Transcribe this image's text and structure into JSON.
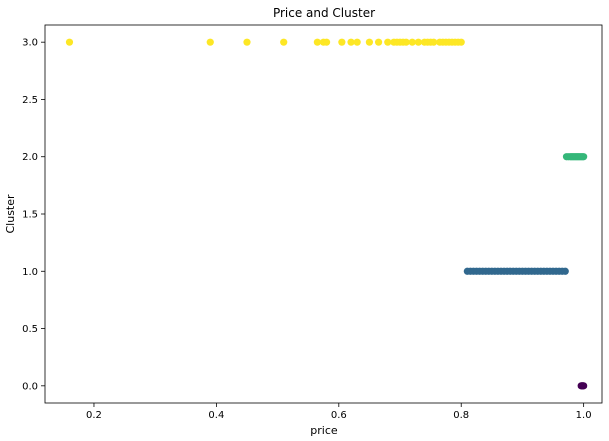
{
  "chart_data": {
    "type": "scatter",
    "title": "Price and Cluster",
    "xlabel": "price",
    "ylabel": "Cluster",
    "xlim": [
      0.12,
      1.03
    ],
    "ylim": [
      -0.15,
      3.15
    ],
    "xticks": [
      0.2,
      0.4,
      0.6,
      0.8,
      1.0
    ],
    "xtick_labels": [
      "0.2",
      "0.4",
      "0.6",
      "0.8",
      "1.0"
    ],
    "yticks": [
      0.0,
      0.5,
      1.0,
      1.5,
      2.0,
      2.5,
      3.0
    ],
    "ytick_labels": [
      "0.0",
      "0.5",
      "1.0",
      "1.5",
      "2.0",
      "2.5",
      "3.0"
    ],
    "grid": false,
    "legend": "none",
    "series": [
      {
        "cluster": 3,
        "color": "#fde725",
        "x": [
          0.16,
          0.39,
          0.45,
          0.51,
          0.565,
          0.575,
          0.58,
          0.605,
          0.62,
          0.63,
          0.65,
          0.665,
          0.68,
          0.69,
          0.695,
          0.7,
          0.705,
          0.71,
          0.72,
          0.73,
          0.74,
          0.745,
          0.75,
          0.755,
          0.765,
          0.77,
          0.775,
          0.78,
          0.785,
          0.79,
          0.795,
          0.8
        ],
        "y": [
          3,
          3,
          3,
          3,
          3,
          3,
          3,
          3,
          3,
          3,
          3,
          3,
          3,
          3,
          3,
          3,
          3,
          3,
          3,
          3,
          3,
          3,
          3,
          3,
          3,
          3,
          3,
          3,
          3,
          3,
          3,
          3
        ]
      },
      {
        "cluster": 2,
        "color": "#35b779",
        "x": [
          0.972,
          0.975,
          0.978,
          0.98,
          0.982,
          0.984,
          0.986,
          0.988,
          0.99,
          0.992,
          0.994,
          0.996,
          0.998,
          1.0
        ],
        "y": [
          2,
          2,
          2,
          2,
          2,
          2,
          2,
          2,
          2,
          2,
          2,
          2,
          2,
          2
        ]
      },
      {
        "cluster": 1,
        "color": "#31688e",
        "x": [
          0.81,
          0.815,
          0.82,
          0.825,
          0.83,
          0.835,
          0.84,
          0.845,
          0.85,
          0.855,
          0.86,
          0.865,
          0.87,
          0.875,
          0.88,
          0.885,
          0.89,
          0.895,
          0.9,
          0.905,
          0.91,
          0.915,
          0.92,
          0.925,
          0.93,
          0.935,
          0.94,
          0.945,
          0.95,
          0.955,
          0.96,
          0.965,
          0.97
        ],
        "y": [
          1,
          1,
          1,
          1,
          1,
          1,
          1,
          1,
          1,
          1,
          1,
          1,
          1,
          1,
          1,
          1,
          1,
          1,
          1,
          1,
          1,
          1,
          1,
          1,
          1,
          1,
          1,
          1,
          1,
          1,
          1,
          1,
          1
        ]
      },
      {
        "cluster": 0,
        "color": "#440154",
        "x": [
          0.996,
          0.997,
          0.998,
          0.999,
          1.0
        ],
        "y": [
          0,
          0,
          0,
          0,
          0
        ]
      }
    ]
  }
}
